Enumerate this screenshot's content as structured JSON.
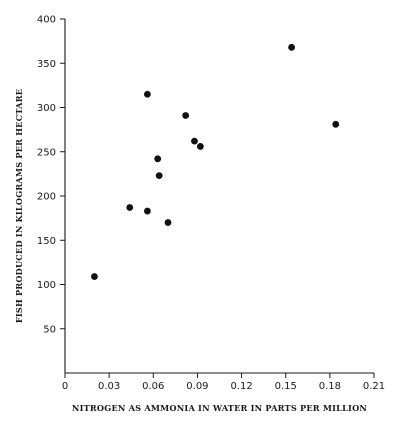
{
  "chart_data": {
    "type": "scatter",
    "title": "",
    "xlabel": "NITROGEN AS AMMONIA IN WATER IN PARTS PER MILLION",
    "ylabel": "FISH PRODUCED IN KILOGRAMS PER HECTARE",
    "xlim": [
      0,
      0.21
    ],
    "ylim": [
      0,
      400
    ],
    "x_ticks": [
      0,
      0.03,
      0.06,
      0.09,
      0.12,
      0.15,
      0.18,
      0.21
    ],
    "x_tick_labels": [
      "0",
      "0.03",
      "0.06",
      "0.09",
      "0.12",
      "0.15",
      "0.18",
      "0.21"
    ],
    "y_ticks": [
      50,
      100,
      150,
      200,
      250,
      300,
      350,
      400
    ],
    "y_tick_labels": [
      "50",
      "100",
      "150",
      "200",
      "250",
      "300",
      "350",
      "400"
    ],
    "grid": false,
    "legend": "none",
    "marker_color": "#111111",
    "points": [
      {
        "x": 0.02,
        "y": 109
      },
      {
        "x": 0.044,
        "y": 187
      },
      {
        "x": 0.056,
        "y": 183
      },
      {
        "x": 0.056,
        "y": 315
      },
      {
        "x": 0.063,
        "y": 242
      },
      {
        "x": 0.064,
        "y": 223
      },
      {
        "x": 0.07,
        "y": 170
      },
      {
        "x": 0.082,
        "y": 291
      },
      {
        "x": 0.088,
        "y": 262
      },
      {
        "x": 0.092,
        "y": 256
      },
      {
        "x": 0.154,
        "y": 368
      },
      {
        "x": 0.184,
        "y": 281
      }
    ]
  }
}
